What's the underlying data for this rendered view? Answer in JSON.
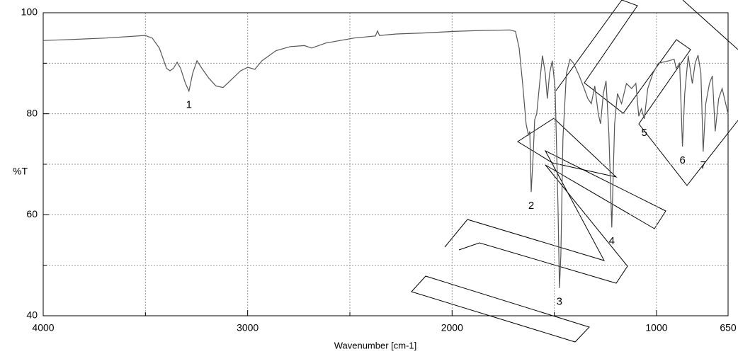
{
  "chart_data": {
    "type": "line",
    "ylabel": "%T",
    "xlabel": "Wavenumber [cm-1]",
    "xlim": [
      4000,
      650
    ],
    "ylim": [
      40,
      100
    ],
    "xticks": [
      4000,
      3000,
      2000,
      1000,
      650
    ],
    "yticks": [
      40,
      60,
      80,
      100
    ],
    "x_minor_ticks": [
      3500,
      2500,
      1500
    ],
    "y_minor_ticks": [
      50,
      70,
      90
    ],
    "grid": true,
    "x": [
      4000,
      3865,
      3692,
      3501,
      3467,
      3432,
      3397,
      3380,
      3363,
      3345,
      3328,
      3304,
      3287,
      3269,
      3248,
      3224,
      3189,
      3155,
      3120,
      3086,
      3034,
      2999,
      2965,
      2930,
      2861,
      2791,
      2722,
      2687,
      2618,
      2479,
      2375,
      2365,
      2355,
      2272,
      2133,
      1994,
      1856,
      1717,
      1690,
      1672,
      1655,
      1638,
      1627,
      1620,
      1613,
      1603,
      1596,
      1586,
      1572,
      1558,
      1544,
      1534,
      1523,
      1510,
      1496,
      1482,
      1475,
      1468,
      1458,
      1441,
      1423,
      1406,
      1378,
      1354,
      1336,
      1319,
      1302,
      1285,
      1274,
      1260,
      1247,
      1233,
      1219,
      1205,
      1191,
      1171,
      1147,
      1122,
      1101,
      1087,
      1074,
      1060,
      1043,
      1018,
      991,
      939,
      914,
      904,
      887,
      873,
      862,
      845,
      825,
      811,
      797,
      783,
      772,
      759,
      741,
      727,
      713,
      696,
      679,
      650
    ],
    "series": [
      {
        "color": "#555555",
        "values": [
          94.5,
          94.7,
          95,
          95.5,
          95,
          93,
          89,
          88.5,
          89,
          90.2,
          89,
          86,
          84.5,
          88,
          90.5,
          89,
          87,
          85.5,
          85.2,
          86.5,
          88.5,
          89.2,
          88.8,
          90.5,
          92.5,
          93.3,
          93.5,
          93,
          94,
          95,
          95.4,
          96.4,
          95.5,
          95.8,
          96,
          96.3,
          96.5,
          96.6,
          96.3,
          93,
          86,
          78,
          75.8,
          76.5,
          64.5,
          72,
          78.8,
          80,
          86,
          91.5,
          88,
          83,
          88,
          90.5,
          85,
          62,
          45.5,
          52,
          75,
          88,
          90.8,
          90,
          87.5,
          85,
          83,
          82,
          85.5,
          80,
          78,
          84,
          86.5,
          76,
          57.5,
          78,
          84,
          82,
          86,
          85,
          86,
          79.5,
          81,
          79,
          85,
          88,
          90,
          90.5,
          90.8,
          89,
          90,
          73.5,
          84,
          91.5,
          86,
          90,
          91.6,
          88,
          72.5,
          82,
          86,
          87.5,
          76.5,
          83,
          85,
          80
        ]
      }
    ],
    "peaks": [
      {
        "label": "1",
        "x": 3287,
        "y": 84.5
      },
      {
        "label": "2",
        "x": 1613,
        "y": 64.5
      },
      {
        "label": "3",
        "x": 1475,
        "y": 45.5
      },
      {
        "label": "4",
        "x": 1219,
        "y": 57.5
      },
      {
        "label": "5",
        "x": 1060,
        "y": 79
      },
      {
        "label": "6",
        "x": 873,
        "y": 73.5
      },
      {
        "label": "7",
        "x": 772,
        "y": 72.5
      }
    ]
  }
}
